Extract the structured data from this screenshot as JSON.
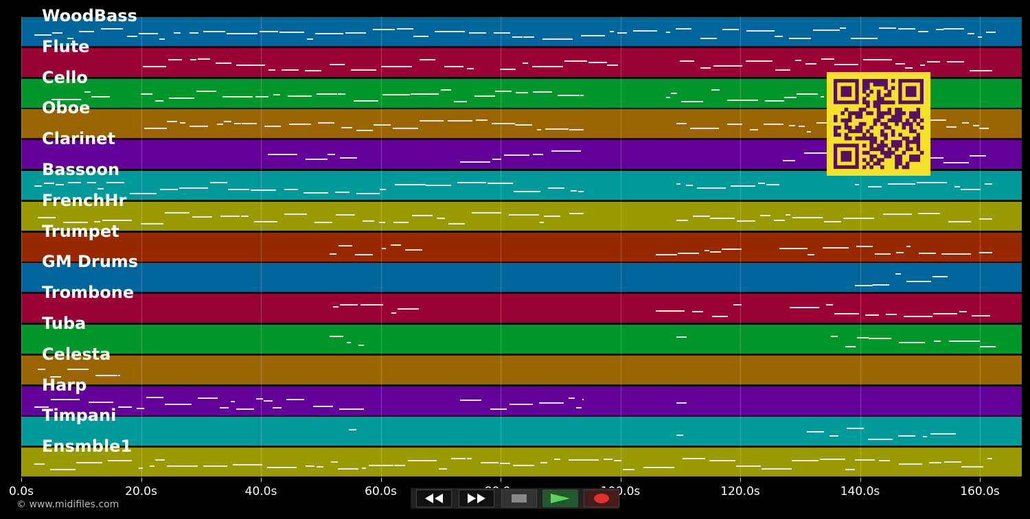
{
  "tracks": [
    {
      "name": "WoodBass",
      "color": "#00659a"
    },
    {
      "name": "Flute",
      "color": "#990033"
    },
    {
      "name": "Cello",
      "color": "#00962a"
    },
    {
      "name": "Oboe",
      "color": "#9a6500"
    },
    {
      "name": "Clarinet",
      "color": "#630099"
    },
    {
      "name": "Bassoon",
      "color": "#00999a"
    },
    {
      "name": "FrenchHr",
      "color": "#999900"
    },
    {
      "name": "Trumpet",
      "color": "#982800"
    },
    {
      "name": "GM Drums",
      "color": "#00659a"
    },
    {
      "name": "Trombone",
      "color": "#990033"
    },
    {
      "name": "Tuba",
      "color": "#00962a"
    },
    {
      "name": "Celesta",
      "color": "#9a6500"
    },
    {
      "name": "Harp",
      "color": "#630099"
    },
    {
      "name": "Timpani",
      "color": "#00999a"
    },
    {
      "name": "Ensmble1",
      "color": "#999900"
    }
  ],
  "timeline": {
    "ticks": [
      "0.0s",
      "20.0s",
      "40.0s",
      "60.0s",
      "80.0s",
      "100.0s",
      "120.0s",
      "140.0s",
      "160.0s"
    ]
  },
  "footer": {
    "copyright": "© www.midifiles.com"
  },
  "controls": [
    {
      "name": "rewind-button",
      "icon": "rewind-icon"
    },
    {
      "name": "fast-forward-button",
      "icon": "fast-forward-icon"
    },
    {
      "name": "stop-button",
      "icon": "stop-icon"
    },
    {
      "name": "play-button",
      "icon": "play-icon"
    },
    {
      "name": "record-button",
      "icon": "record-icon"
    }
  ],
  "qr_code": {
    "color": "#5a0f5e",
    "background": "#f5e02a"
  }
}
